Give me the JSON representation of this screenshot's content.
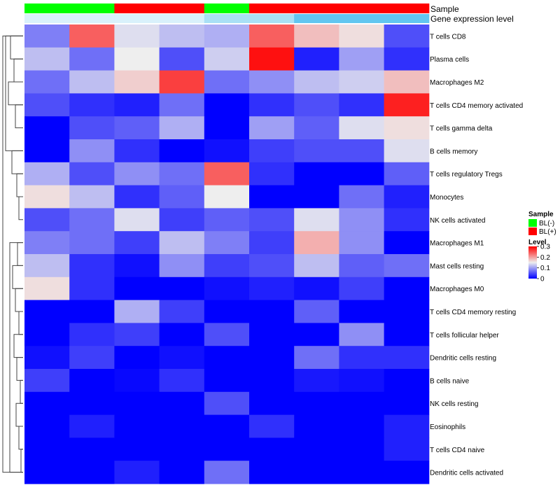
{
  "chart_data": {
    "type": "heatmap",
    "annotation_labels": {
      "sample": "Sample",
      "gene_expression": "Gene expression level"
    },
    "columns": {
      "sample_group": [
        "BL(-)",
        "BL(-)",
        "BL(+)",
        "BL(+)",
        "BL(-)",
        "BL(+)",
        "BL(+)",
        "BL(+)",
        "BL(+)"
      ],
      "gene_expression_level": [
        "low",
        "low",
        "low",
        "low",
        "mid",
        "mid",
        "high",
        "high",
        "high"
      ]
    },
    "rows": [
      "T cells CD8",
      "Plasma cells",
      "Macrophages M2",
      "T cells CD4 memory activated",
      "T cells gamma delta",
      "B cells memory",
      "T cells regulatory  Tregs",
      "Monocytes",
      "NK cells activated",
      "Macrophages M1",
      "Mast cells resting",
      "Macrophages M0",
      "T cells CD4 memory resting",
      "T cells follicular helper",
      "Dendritic cells resting",
      "B cells naive",
      "NK cells resting",
      "Eosinophils",
      "T cells CD4 naive",
      "Dendritic cells activated"
    ],
    "values": [
      [
        0.08,
        0.24,
        0.14,
        0.12,
        0.11,
        0.24,
        0.18,
        0.16,
        0.05
      ],
      [
        0.12,
        0.07,
        0.15,
        0.05,
        0.13,
        0.29,
        0.02,
        0.1,
        0.03
      ],
      [
        0.07,
        0.12,
        0.17,
        0.26,
        0.07,
        0.09,
        0.12,
        0.13,
        0.18
      ],
      [
        0.05,
        0.03,
        0.02,
        0.07,
        0.0,
        0.03,
        0.05,
        0.03,
        0.28
      ],
      [
        0.0,
        0.05,
        0.06,
        0.11,
        0.0,
        0.1,
        0.06,
        0.14,
        0.16
      ],
      [
        0.0,
        0.09,
        0.03,
        0.0,
        0.01,
        0.04,
        0.05,
        0.05,
        0.14
      ],
      [
        0.11,
        0.05,
        0.09,
        0.07,
        0.24,
        0.03,
        0.0,
        0.0,
        0.06
      ],
      [
        0.16,
        0.12,
        0.03,
        0.06,
        0.15,
        0.0,
        0.0,
        0.07,
        0.02
      ],
      [
        0.05,
        0.07,
        0.14,
        0.04,
        0.06,
        0.05,
        0.14,
        0.09,
        0.03
      ],
      [
        0.08,
        0.07,
        0.04,
        0.12,
        0.08,
        0.04,
        0.19,
        0.09,
        0.0
      ],
      [
        0.12,
        0.03,
        0.01,
        0.09,
        0.04,
        0.05,
        0.12,
        0.06,
        0.07
      ],
      [
        0.16,
        0.03,
        0.0,
        0.0,
        0.01,
        0.02,
        0.01,
        0.04,
        0.0
      ],
      [
        0.0,
        0.0,
        0.11,
        0.04,
        0.0,
        0.0,
        0.06,
        0.0,
        0.0
      ],
      [
        0.0,
        0.03,
        0.04,
        0.0,
        0.05,
        0.0,
        0.0,
        0.09,
        0.0
      ],
      [
        0.01,
        0.04,
        0.0,
        0.01,
        0.0,
        0.0,
        0.07,
        0.03,
        0.03
      ],
      [
        0.04,
        0.0,
        0.005,
        0.03,
        0.0,
        0.0,
        0.015,
        0.01,
        0.0
      ],
      [
        0.0,
        0.0,
        0.0,
        0.0,
        0.05,
        0.0,
        0.0,
        0.0,
        0.0
      ],
      [
        0.0,
        0.02,
        0.0,
        0.0,
        0.0,
        0.03,
        0.0,
        0.0,
        0.02
      ],
      [
        0.0,
        0.0,
        0.0,
        0.0,
        0.0,
        0.0,
        0.0,
        0.0,
        0.02
      ],
      [
        0.0,
        0.0,
        0.02,
        0.0,
        0.07,
        0.0,
        0.0,
        0.0,
        0.0
      ]
    ],
    "legend": {
      "sample_title": "Sample",
      "sample_items": [
        {
          "label": "BL(-)",
          "color": "#00ff00"
        },
        {
          "label": "BL(+)",
          "color": "#ff0000"
        }
      ],
      "level_title": "Level",
      "level_ticks": [
        "0.3",
        "0.2",
        "0.1",
        "0"
      ],
      "level_tick_values": [
        0.3,
        0.2,
        0.1,
        0
      ],
      "level_range": [
        0,
        0.3
      ]
    },
    "colors": {
      "low": "#0000ff",
      "mid": "#eeeeee",
      "high": "#ff0000",
      "bl_minus": "#00ff00",
      "bl_plus": "#ff0000",
      "expr_low": "#d9f1fb",
      "expr_mid": "#a9e0f5",
      "expr_high": "#62c6f0"
    }
  }
}
